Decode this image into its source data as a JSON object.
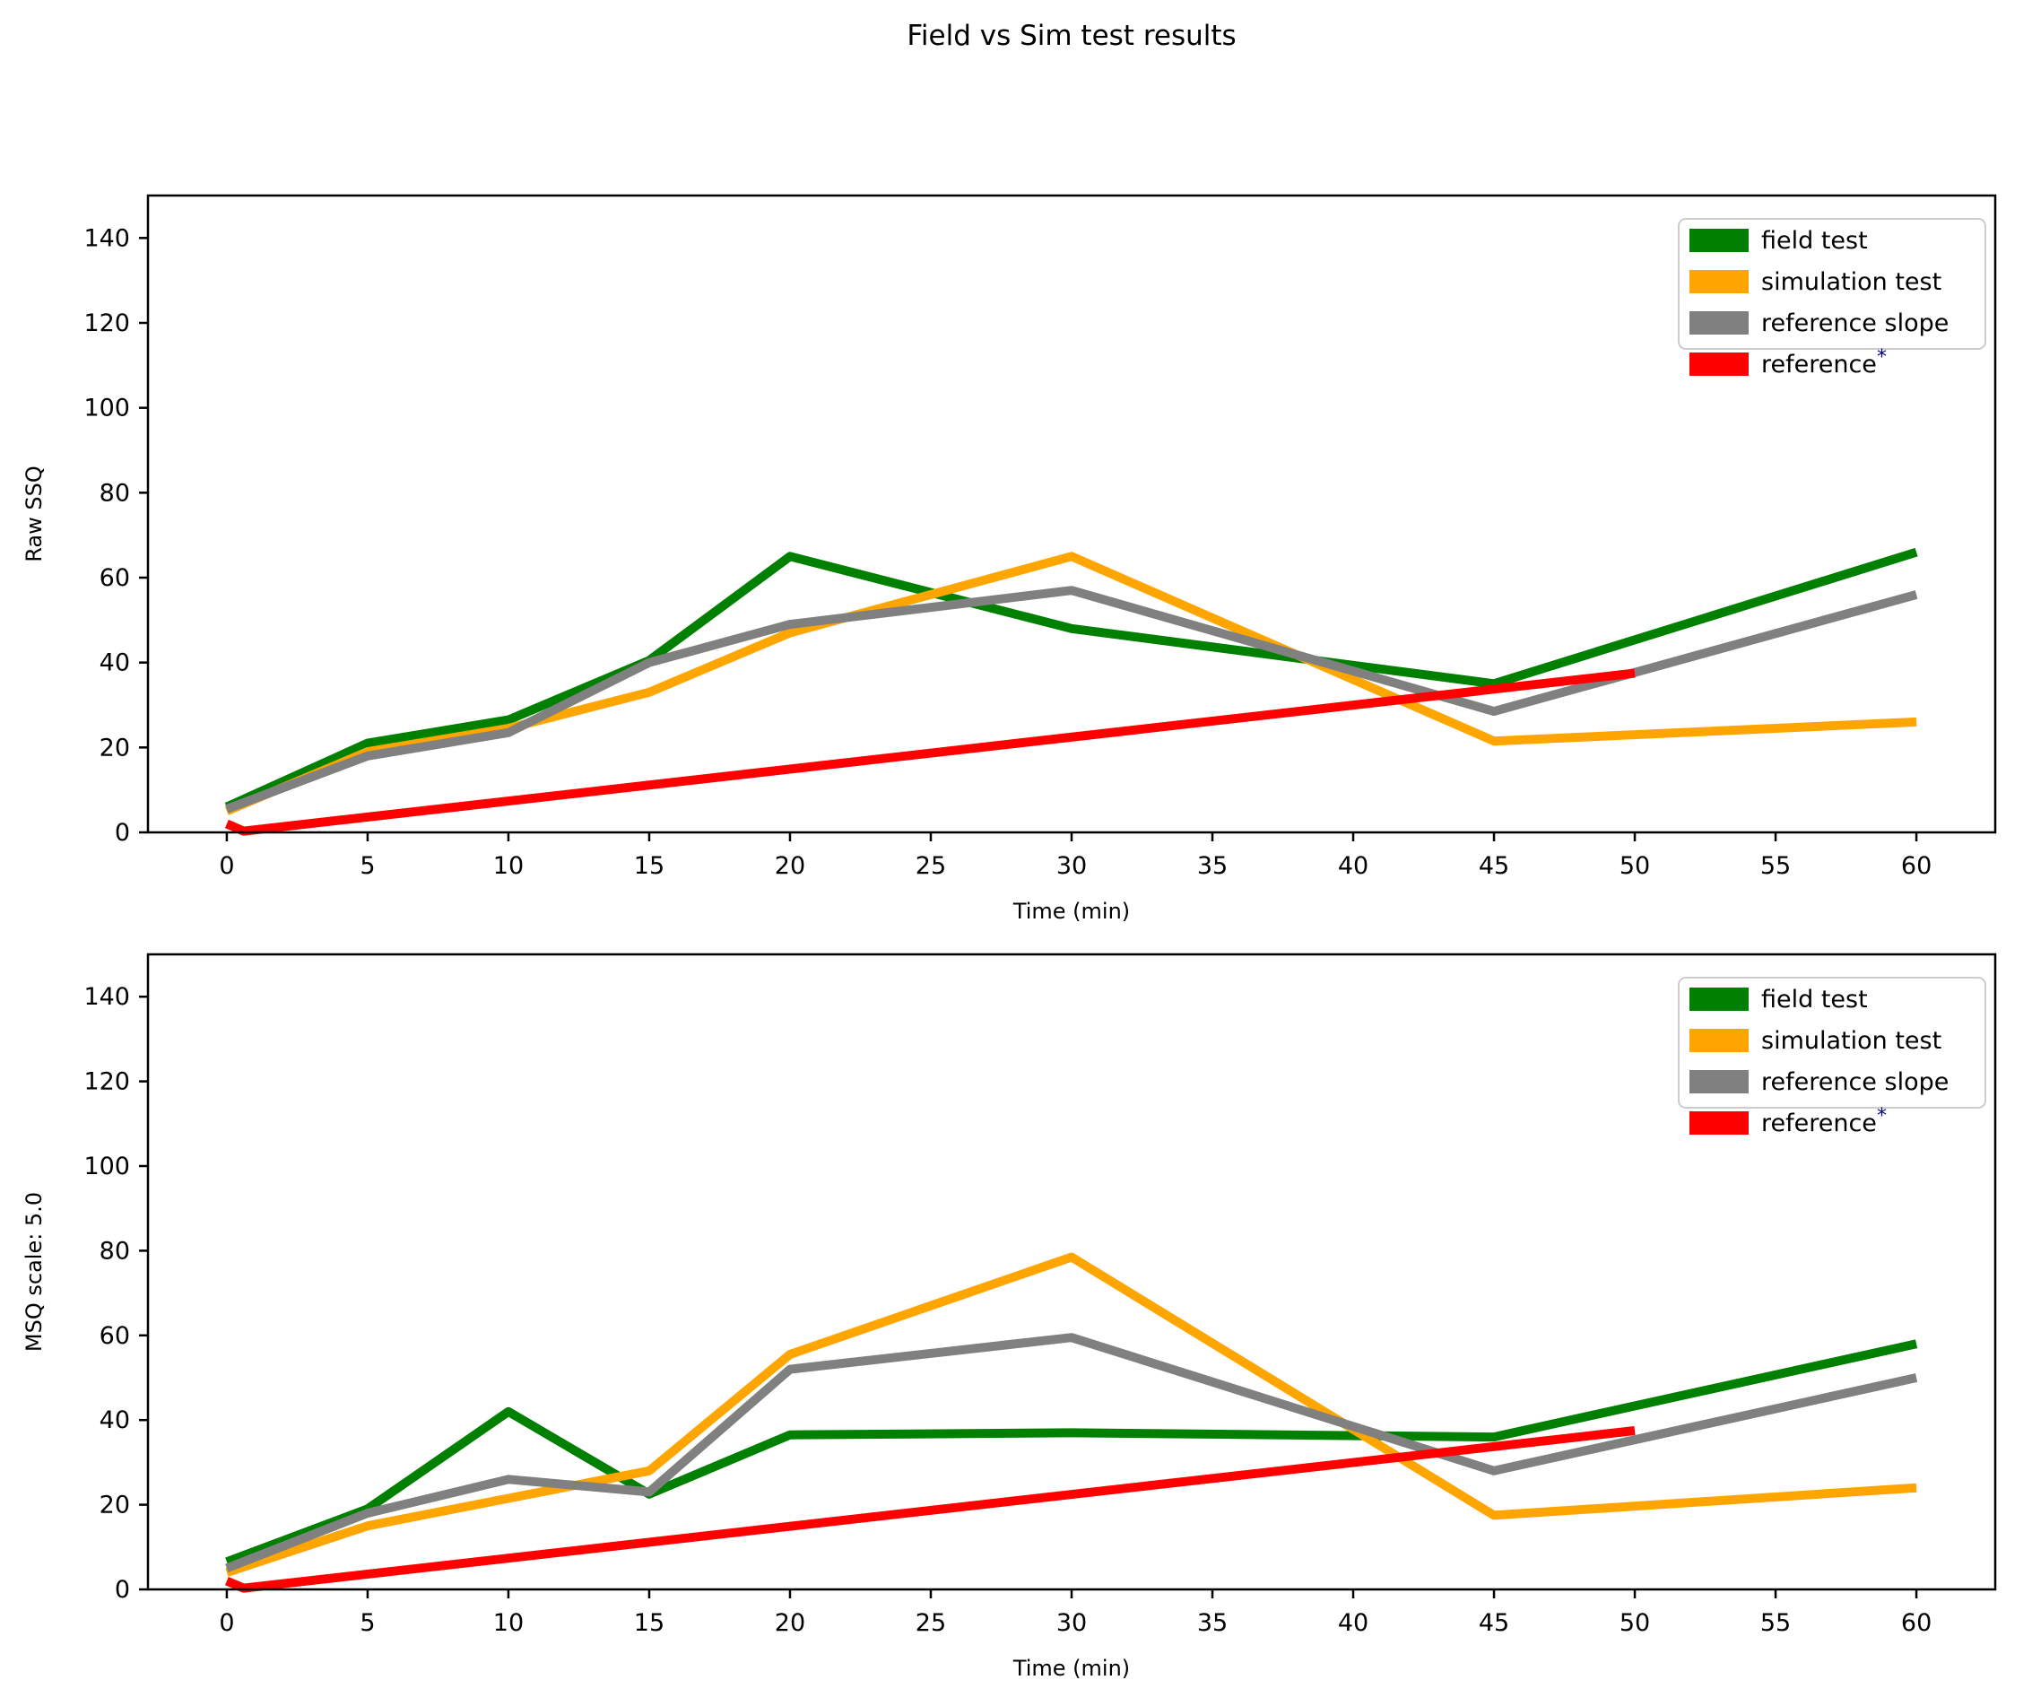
{
  "title": "Field vs Sim test results",
  "legend": {
    "entries": [
      {
        "label": "field test",
        "color": "#008000",
        "superscript": ""
      },
      {
        "label": "simulation test",
        "color": "#FFA500",
        "superscript": ""
      },
      {
        "label": "reference slope",
        "color": "#808080",
        "superscript": ""
      },
      {
        "label": "reference",
        "color": "#FF0000",
        "superscript": "*"
      }
    ],
    "asterisk_color": "#00008b",
    "frame_color": "#cccccc"
  },
  "chart_data": [
    {
      "type": "line",
      "title": "Field vs Sim test results",
      "xlabel": "Time (min)",
      "ylabel": "Raw SSQ",
      "x_ticks": [
        0,
        5,
        10,
        15,
        20,
        25,
        30,
        35,
        40,
        45,
        50,
        55,
        60
      ],
      "y_ticks": [
        0,
        20,
        40,
        60,
        80,
        100,
        120,
        140
      ],
      "xlim": [
        -2.8,
        62.8
      ],
      "ylim": [
        0,
        150
      ],
      "grid": false,
      "legend_position": "upper right",
      "series": [
        {
          "name": "field test",
          "color": "#008000",
          "x": [
            0,
            5,
            10,
            15,
            20,
            30,
            45,
            60
          ],
          "y": [
            6,
            21,
            26.5,
            40.5,
            65,
            48,
            35,
            66
          ]
        },
        {
          "name": "simulation test",
          "color": "#FFA500",
          "x": [
            0,
            5,
            10,
            15,
            20,
            30,
            45,
            60
          ],
          "y": [
            5,
            19,
            24.5,
            33,
            47,
            65,
            21.5,
            26
          ]
        },
        {
          "name": "reference slope",
          "color": "#808080",
          "x": [
            0,
            5,
            10,
            15,
            20,
            30,
            45,
            60
          ],
          "y": [
            5.5,
            18,
            23.5,
            40,
            49,
            57,
            28.5,
            56
          ]
        },
        {
          "name": "reference",
          "color": "#FF0000",
          "x": [
            0,
            0.6,
            50
          ],
          "y": [
            2,
            0.3,
            37.5
          ]
        }
      ]
    },
    {
      "type": "line",
      "title": "",
      "xlabel": "Time (min)",
      "ylabel": "MSQ scale: 5.0",
      "x_ticks": [
        0,
        5,
        10,
        15,
        20,
        25,
        30,
        35,
        40,
        45,
        50,
        55,
        60
      ],
      "y_ticks": [
        0,
        20,
        40,
        60,
        80,
        100,
        120,
        140
      ],
      "xlim": [
        -2.8,
        62.8
      ],
      "ylim": [
        0,
        150
      ],
      "grid": false,
      "legend_position": "upper right",
      "series": [
        {
          "name": "field test",
          "color": "#008000",
          "x": [
            0,
            5,
            10,
            15,
            20,
            30,
            45,
            60
          ],
          "y": [
            6.5,
            19,
            42,
            22.5,
            36.5,
            37,
            36,
            58
          ]
        },
        {
          "name": "simulation test",
          "color": "#FFA500",
          "x": [
            0,
            5,
            10,
            15,
            20,
            30,
            45,
            60
          ],
          "y": [
            4,
            15,
            21.5,
            28,
            55.5,
            78.5,
            17.5,
            24
          ]
        },
        {
          "name": "reference slope",
          "color": "#808080",
          "x": [
            0,
            5,
            10,
            15,
            20,
            30,
            45,
            60
          ],
          "y": [
            5,
            18,
            26,
            23,
            52,
            59.5,
            28,
            50
          ]
        },
        {
          "name": "reference",
          "color": "#FF0000",
          "x": [
            0,
            0.6,
            50
          ],
          "y": [
            2,
            0.3,
            37.5
          ]
        }
      ]
    }
  ]
}
